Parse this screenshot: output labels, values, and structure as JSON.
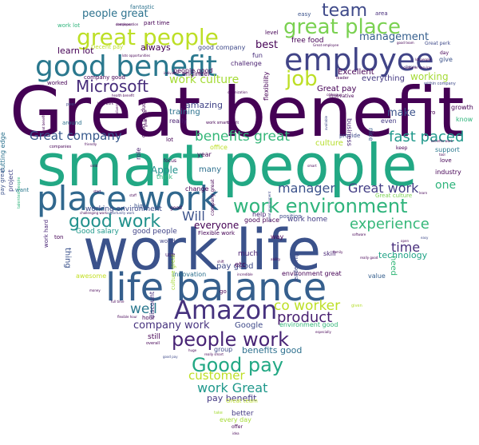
{
  "word_cloud": {
    "words": [
      {
        "text": "Great benefit",
        "color": "#440154"
      },
      {
        "text": "smart people",
        "color": "#22a884"
      },
      {
        "text": "work life",
        "color": "#3b528b"
      },
      {
        "text": "life balance",
        "color": "#355f8d"
      },
      {
        "text": "place work",
        "color": "#31688e"
      },
      {
        "text": "employee",
        "color": "#414487"
      },
      {
        "text": "good benefit",
        "color": "#2a788e"
      },
      {
        "text": "great people",
        "color": "#bddf26"
      },
      {
        "text": "great place",
        "color": "#7ad151"
      },
      {
        "text": "work environment",
        "color": "#2fb47c"
      },
      {
        "text": "Amazon",
        "color": "#46327e"
      },
      {
        "text": "people work",
        "color": "#482475"
      },
      {
        "text": "Good pay",
        "color": "#22a884"
      },
      {
        "text": "good work",
        "color": "#21918c"
      },
      {
        "text": "team",
        "color": "#3e4989"
      },
      {
        "text": "job",
        "color": "#bddf26"
      },
      {
        "text": "Microsoft",
        "color": "#472d7b"
      },
      {
        "text": "fast paced",
        "color": "#1f988b"
      },
      {
        "text": "benefits great",
        "color": "#35b779"
      },
      {
        "text": "Great company",
        "color": "#38598c"
      },
      {
        "text": "experience",
        "color": "#35b779"
      },
      {
        "text": "co worker",
        "color": "#bddf26"
      },
      {
        "text": "manager",
        "color": "#3b528b"
      },
      {
        "text": "Great work",
        "color": "#433e85"
      },
      {
        "text": "product",
        "color": "#481f70"
      },
      {
        "text": "work Great",
        "color": "#1f988b"
      },
      {
        "text": "customer",
        "color": "#bddf26"
      },
      {
        "text": "people great",
        "color": "#2c728e"
      },
      {
        "text": "management",
        "color": "#355f8d"
      },
      {
        "text": "work culture",
        "color": "#a5db36"
      },
      {
        "text": "time",
        "color": "#472d7b"
      },
      {
        "text": "Will",
        "color": "#3b528b"
      },
      {
        "text": "one",
        "color": "#2fb47c"
      },
      {
        "text": "well",
        "color": "#2a788e"
      },
      {
        "text": "company work",
        "color": "#46327e"
      },
      {
        "text": "working",
        "color": "#a5db36"
      },
      {
        "text": "best",
        "color": "#440154"
      },
      {
        "text": "amazing",
        "color": "#414487"
      },
      {
        "text": "pay benefit",
        "color": "#443a83"
      },
      {
        "text": "benefits good",
        "color": "#2d708e"
      },
      {
        "text": "learn lot",
        "color": "#440154"
      },
      {
        "text": "technology",
        "color": "#20a386"
      },
      {
        "text": "make",
        "color": "#3b528b"
      },
      {
        "text": "Apple",
        "color": "#21918c"
      },
      {
        "text": "everyone",
        "color": "#440154"
      },
      {
        "text": "working environment",
        "color": "#3e4989"
      },
      {
        "text": "always",
        "color": "#440154"
      },
      {
        "text": "free food",
        "color": "#440154"
      },
      {
        "text": "Excellent",
        "color": "#440154"
      },
      {
        "text": "Great pay",
        "color": "#440154"
      },
      {
        "text": "everything",
        "color": "#443a83"
      },
      {
        "text": "Good salary",
        "color": "#1f988b"
      },
      {
        "text": "good people",
        "color": "#414487"
      },
      {
        "text": "Google",
        "color": "#3e4989"
      },
      {
        "text": "pay good",
        "color": "#3e4989"
      },
      {
        "text": "training",
        "color": "#2c728e"
      },
      {
        "text": "culture",
        "color": "#b5de2b"
      },
      {
        "text": "etc",
        "color": "#440154"
      },
      {
        "text": "much",
        "color": "#481f70"
      },
      {
        "text": "still",
        "color": "#440154"
      },
      {
        "text": "better",
        "color": "#443a83"
      },
      {
        "text": "thing",
        "color": "#3b528b"
      },
      {
        "text": "need",
        "color": "#35b779"
      },
      {
        "text": "many",
        "color": "#2d708e"
      },
      {
        "text": "engineer",
        "color": "#440154"
      },
      {
        "text": "people good",
        "color": "#440154"
      },
      {
        "text": "good company",
        "color": "#3e4989"
      },
      {
        "text": "awesome",
        "color": "#c2df23"
      },
      {
        "text": "innovation",
        "color": "#2d708e"
      },
      {
        "text": "environment great",
        "color": "#440154"
      },
      {
        "text": "environment good",
        "color": "#35b779"
      },
      {
        "text": "work home",
        "color": "#433e85"
      },
      {
        "text": "good place",
        "color": "#440154"
      },
      {
        "text": "fantastic",
        "color": "#2c728e"
      },
      {
        "text": "part time",
        "color": "#440154"
      },
      {
        "text": "area",
        "color": "#472d7b"
      },
      {
        "text": "easy",
        "color": "#3b528b"
      },
      {
        "text": "fun",
        "color": "#472d7b"
      },
      {
        "text": "challenge",
        "color": "#481f70"
      },
      {
        "text": "worked",
        "color": "#440154"
      },
      {
        "text": "Great culture",
        "color": "#7ad151"
      },
      {
        "text": "help",
        "color": "#482475"
      },
      {
        "text": "position",
        "color": "#3e4989"
      },
      {
        "text": "way",
        "color": "#440154"
      },
      {
        "text": "every day",
        "color": "#a5db36"
      },
      {
        "text": "value",
        "color": "#355f8d"
      },
      {
        "text": "support",
        "color": "#2a788e"
      },
      {
        "text": "love",
        "color": "#440154"
      },
      {
        "text": "industry",
        "color": "#440154"
      },
      {
        "text": "growth",
        "color": "#440154"
      },
      {
        "text": "even",
        "color": "#443a83"
      },
      {
        "text": "nice",
        "color": "#355f8d"
      },
      {
        "text": "give",
        "color": "#3b528b"
      },
      {
        "text": "day",
        "color": "#440154"
      },
      {
        "text": "Great perk",
        "color": "#3e4989"
      },
      {
        "text": "level",
        "color": "#440154"
      },
      {
        "text": "offer",
        "color": "#440154"
      },
      {
        "text": "skill",
        "color": "#482475"
      },
      {
        "text": "go",
        "color": "#440154"
      },
      {
        "text": "change",
        "color": "#440154"
      },
      {
        "text": "group",
        "color": "#3e4989"
      },
      {
        "text": "office",
        "color": "#bddf26"
      },
      {
        "text": "lot",
        "color": "#440154"
      },
      {
        "text": "year",
        "color": "#440154"
      },
      {
        "text": "cutting edge",
        "color": "#2c728e"
      },
      {
        "text": "project",
        "color": "#414487"
      },
      {
        "text": "pay great",
        "color": "#3b528b"
      },
      {
        "text": "want",
        "color": "#2a788e"
      },
      {
        "text": "high",
        "color": "#3b528b"
      },
      {
        "text": "work hard",
        "color": "#482475"
      },
      {
        "text": "hour",
        "color": "#440154"
      },
      {
        "text": "Flexible work",
        "color": "#440154"
      },
      {
        "text": "focus",
        "color": "#440154"
      },
      {
        "text": "think",
        "color": "#2fb47c"
      },
      {
        "text": "really",
        "color": "#481f70"
      },
      {
        "text": "role",
        "color": "#481f70"
      },
      {
        "text": "Decent pay",
        "color": "#bddf26"
      },
      {
        "text": "pro",
        "color": "#440154"
      },
      {
        "text": "know",
        "color": "#2fb47c"
      },
      {
        "text": "keep",
        "color": "#440154"
      },
      {
        "text": "provide",
        "color": "#3e4989"
      },
      {
        "text": "flexibility",
        "color": "#440154"
      },
      {
        "text": "business",
        "color": "#482475"
      },
      {
        "text": "company good",
        "color": "#440154"
      },
      {
        "text": "around",
        "color": "#2d708e"
      },
      {
        "text": "company great",
        "color": "#440154"
      },
      {
        "text": "ton",
        "color": "#440154"
      },
      {
        "text": "world",
        "color": "#414487"
      },
      {
        "text": "discount",
        "color": "#472d7b"
      },
      {
        "text": "culture great",
        "color": "#a5db36"
      },
      {
        "text": "innovative",
        "color": "#440154"
      },
      {
        "text": "leadership",
        "color": "#3e4989"
      },
      {
        "text": "good",
        "color": "#440154"
      },
      {
        "text": "use",
        "color": "#481f70"
      },
      {
        "text": "Great team",
        "color": "#bddf26"
      },
      {
        "text": "work lot",
        "color": "#2fb47c"
      },
      {
        "text": "good product",
        "color": "#440154"
      }
    ],
    "tiny_words": [
      {
        "text": "compensation",
        "color": "#440154"
      },
      {
        "text": "lots opportunities",
        "color": "#440154"
      },
      {
        "text": "individual",
        "color": "#440154"
      },
      {
        "text": "health benefit",
        "color": "#440154"
      },
      {
        "text": "peer",
        "color": "#3e4989"
      },
      {
        "text": "companies",
        "color": "#440154"
      },
      {
        "text": "friendly",
        "color": "#440154"
      },
      {
        "text": "talented people",
        "color": "#2fb47c"
      },
      {
        "text": "great benefit",
        "color": "#440154"
      },
      {
        "text": "diverse",
        "color": "#440154"
      },
      {
        "text": "work smart",
        "color": "#440154"
      },
      {
        "text": "great work",
        "color": "#440154"
      },
      {
        "text": "Great employee",
        "color": "#440154"
      },
      {
        "text": "colleague",
        "color": "#440154"
      },
      {
        "text": "leader",
        "color": "#440154"
      },
      {
        "text": "good team",
        "color": "#440154"
      },
      {
        "text": "lot people",
        "color": "#440154"
      },
      {
        "text": "within company",
        "color": "#3e4989"
      },
      {
        "text": "chance",
        "color": "#3e4989"
      },
      {
        "text": "benefits work",
        "color": "#440154"
      },
      {
        "text": "tool",
        "color": "#440154"
      },
      {
        "text": "really good",
        "color": "#440154"
      },
      {
        "text": "software",
        "color": "#440154"
      },
      {
        "text": "easy",
        "color": "#3e4989"
      },
      {
        "text": "family",
        "color": "#440154"
      },
      {
        "text": "opportunity work",
        "color": "#3e4989"
      },
      {
        "text": "staff",
        "color": "#440154"
      },
      {
        "text": "start",
        "color": "#440154"
      },
      {
        "text": "challenging work",
        "color": "#440154"
      },
      {
        "text": "great environment",
        "color": "#3e4989"
      },
      {
        "text": "ability",
        "color": "#440154"
      },
      {
        "text": "incredible",
        "color": "#440154"
      },
      {
        "text": "shift",
        "color": "#440154"
      },
      {
        "text": "overall",
        "color": "#440154"
      },
      {
        "text": "huge",
        "color": "#440154"
      },
      {
        "text": "really smart",
        "color": "#440154"
      },
      {
        "text": "good pay",
        "color": "#3e4989"
      },
      {
        "text": "full time",
        "color": "#440154"
      },
      {
        "text": "money",
        "color": "#440154"
      },
      {
        "text": "flexible hour",
        "color": "#440154"
      },
      {
        "text": "given",
        "color": "#b5de2b"
      },
      {
        "text": "especially",
        "color": "#440154"
      },
      {
        "text": "take",
        "color": "#a5db36"
      },
      {
        "text": "idea",
        "color": "#440154"
      },
      {
        "text": "available",
        "color": "#3e4989"
      },
      {
        "text": "organization",
        "color": "#440154"
      },
      {
        "text": "customer service",
        "color": "#440154"
      },
      {
        "text": "developer",
        "color": "#440154"
      },
      {
        "text": "hard work",
        "color": "#440154"
      },
      {
        "text": "open",
        "color": "#440154"
      },
      {
        "text": "learn",
        "color": "#440154"
      },
      {
        "text": "smart",
        "color": "#440154"
      },
      {
        "text": "solid",
        "color": "#440154"
      },
      {
        "text": "benefit",
        "color": "#440154"
      }
    ]
  }
}
